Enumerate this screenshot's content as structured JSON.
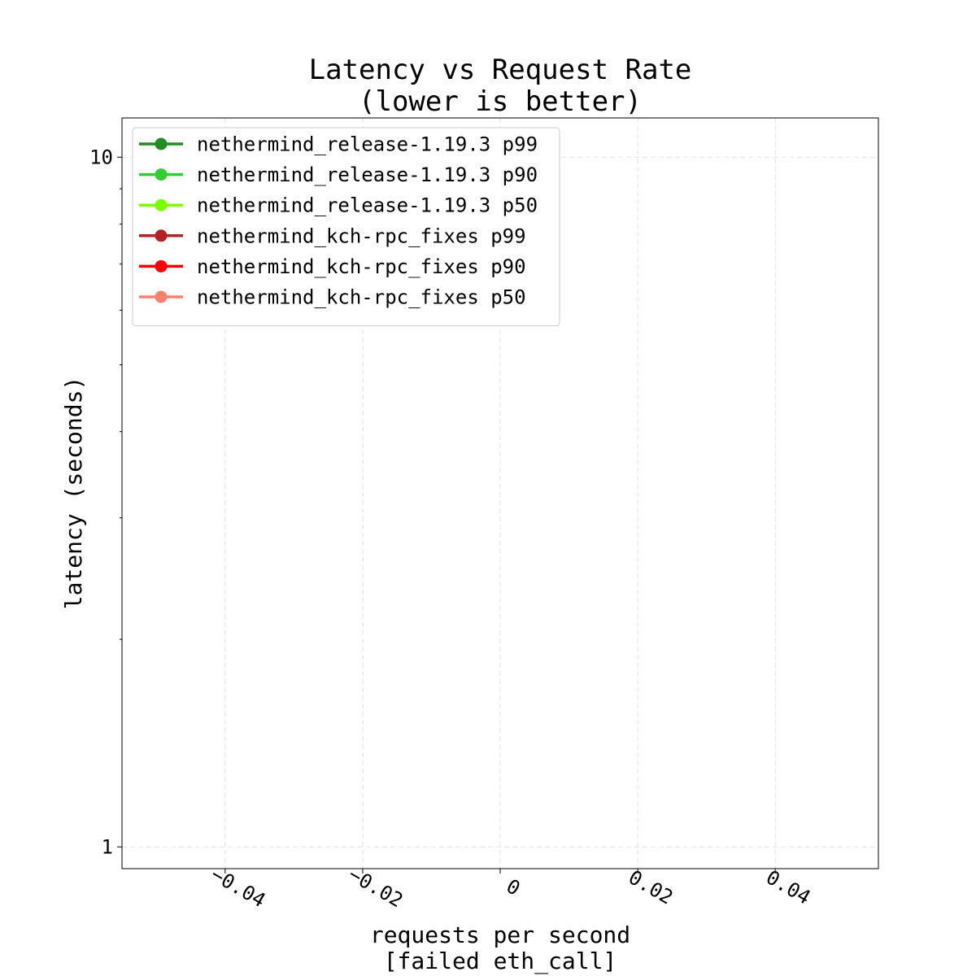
{
  "chart_data": {
    "type": "line",
    "title": "Latency vs Request Rate\n(lower is better)",
    "xlabel": "requests per second\n[failed eth_call]",
    "ylabel": "latency (seconds)",
    "xlim": [
      -0.055,
      0.055
    ],
    "ylim": [
      0.93,
      11.4
    ],
    "yscale": "log",
    "grid": true,
    "legend_position": "top-left",
    "x_ticks": [
      {
        "value": -0.04,
        "label": "−0.04"
      },
      {
        "value": -0.02,
        "label": "−0.02"
      },
      {
        "value": 0,
        "label": "0"
      },
      {
        "value": 0.02,
        "label": "0.02"
      },
      {
        "value": 0.04,
        "label": "0.04"
      }
    ],
    "y_ticks": [
      {
        "value": 1,
        "label": "1"
      },
      {
        "value": 10,
        "label": "10"
      }
    ],
    "series": [
      {
        "name": "nethermind_release-1.19.3 p99",
        "color": "#228b22",
        "x": [],
        "y": []
      },
      {
        "name": "nethermind_release-1.19.3 p90",
        "color": "#32cd32",
        "x": [],
        "y": []
      },
      {
        "name": "nethermind_release-1.19.3 p50",
        "color": "#7cfc00",
        "x": [],
        "y": []
      },
      {
        "name": "nethermind_kch-rpc_fixes p99",
        "color": "#b22222",
        "x": [],
        "y": []
      },
      {
        "name": "nethermind_kch-rpc_fixes p90",
        "color": "#ff0000",
        "x": [],
        "y": []
      },
      {
        "name": "nethermind_kch-rpc_fixes p50",
        "color": "#fa8072",
        "x": [],
        "y": []
      }
    ]
  }
}
